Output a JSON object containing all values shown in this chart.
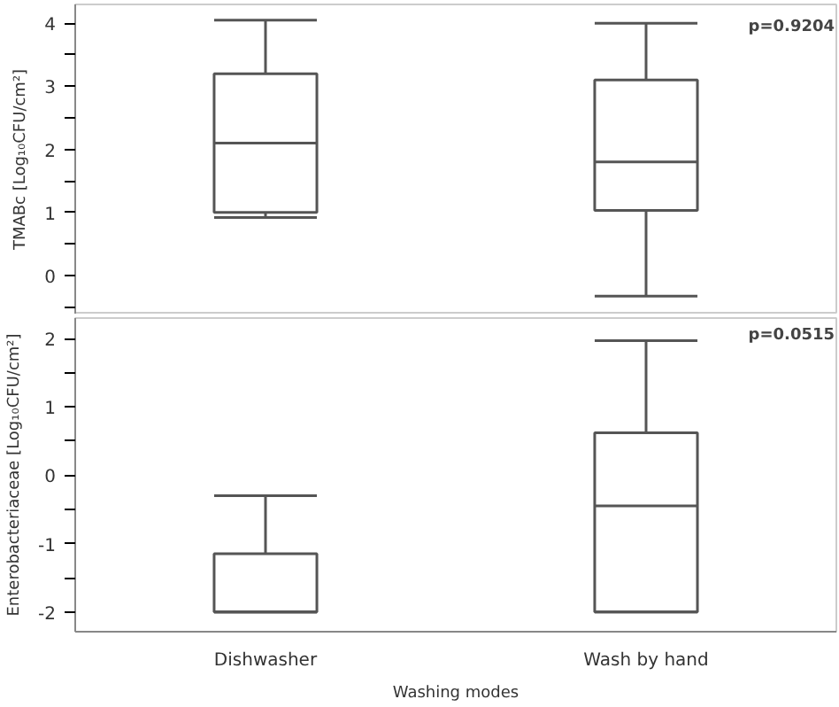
{
  "chart_data": [
    {
      "type": "box",
      "categories": [
        "Dishwasher",
        "Wash by hand"
      ],
      "ylabel": "TMABc [Log₁₀CFU/cm²]",
      "ylim": [
        -0.62,
        4.3
      ],
      "yticks": [
        0,
        {
          "value": 0.5,
          "label": null
        },
        1,
        {
          "value": 1.5,
          "label": null
        },
        2,
        {
          "value": 2.5,
          "label": null
        },
        3,
        {
          "value": 3.5,
          "label": null
        },
        4,
        {
          "value": -0.5,
          "label": null
        }
      ],
      "tick_labels": "y",
      "grid": false,
      "annotations": [
        "p=0.9204"
      ],
      "boxes": [
        {
          "low": 0.92,
          "q1": 1.0,
          "median": 2.1,
          "q3": 3.2,
          "high": 4.05
        },
        {
          "low": -0.33,
          "q1": 1.03,
          "median": 1.8,
          "q3": 3.1,
          "high": 4.0
        }
      ]
    },
    {
      "type": "box",
      "categories": [
        "Dishwasher",
        "Wash by hand"
      ],
      "xlabel": "Washing modes",
      "ylabel": "Enterobacteriaceae [Log₁₀CFU/cm²]",
      "ylim": [
        -2.29,
        2.3
      ],
      "yticks": [
        -2,
        {
          "value": -1.5,
          "label": null
        },
        -1,
        {
          "value": -0.5,
          "label": null
        },
        0,
        {
          "value": 0.5,
          "label": null
        },
        1,
        {
          "value": 1.5,
          "label": null
        },
        2
      ],
      "grid": false,
      "annotations": [
        "p=0.0515"
      ],
      "boxes": [
        {
          "low": -2,
          "q1": -2,
          "median": -2,
          "q3": -1.15,
          "high": -0.3
        },
        {
          "low": -2,
          "q1": -2,
          "median": -0.45,
          "q3": 0.62,
          "high": 1.97
        }
      ]
    }
  ]
}
